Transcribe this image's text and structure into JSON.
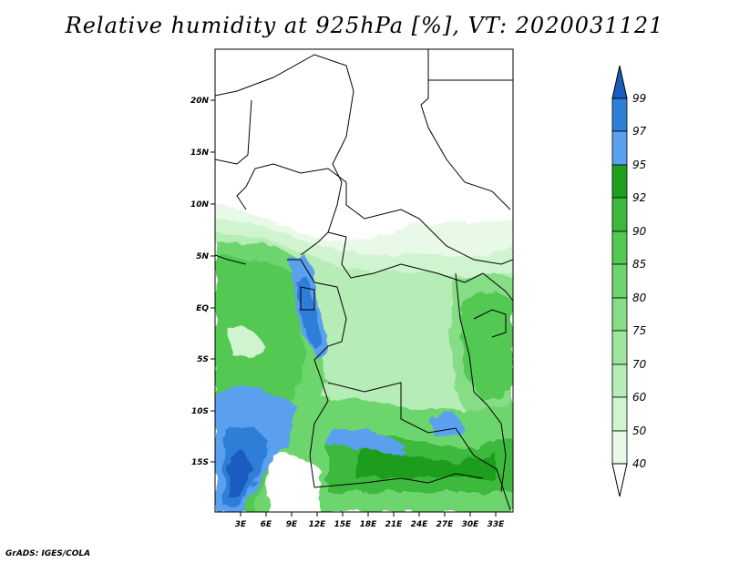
{
  "title": "Relative humidity at 925hPa [%], VT: 2020031121",
  "credit": "GrADS: IGES/COLA",
  "map": {
    "lat_labels": [
      "20N",
      "15N",
      "10N",
      "5N",
      "EQ",
      "5S",
      "10S",
      "15S"
    ],
    "lon_labels": [
      "3E",
      "6E",
      "9E",
      "12E",
      "15E",
      "18E",
      "21E",
      "24E",
      "27E",
      "30E",
      "33E"
    ]
  },
  "colorbar": {
    "levels": [
      "40",
      "50",
      "60",
      "70",
      "75",
      "80",
      "85",
      "90",
      "92",
      "95",
      "97",
      "99"
    ],
    "colors": {
      "white": "#ffffff",
      "c40": "#e8f9e8",
      "c50": "#d0f4d0",
      "c60": "#b6ecb6",
      "c70": "#9ee59e",
      "c75": "#86dd86",
      "c80": "#6dd56d",
      "c85": "#52c952",
      "c90": "#3cb93c",
      "c92": "#1f9e1f",
      "c95": "#5aa0ee",
      "c97": "#2f7ed8",
      "c99": "#1a5cc0"
    }
  }
}
